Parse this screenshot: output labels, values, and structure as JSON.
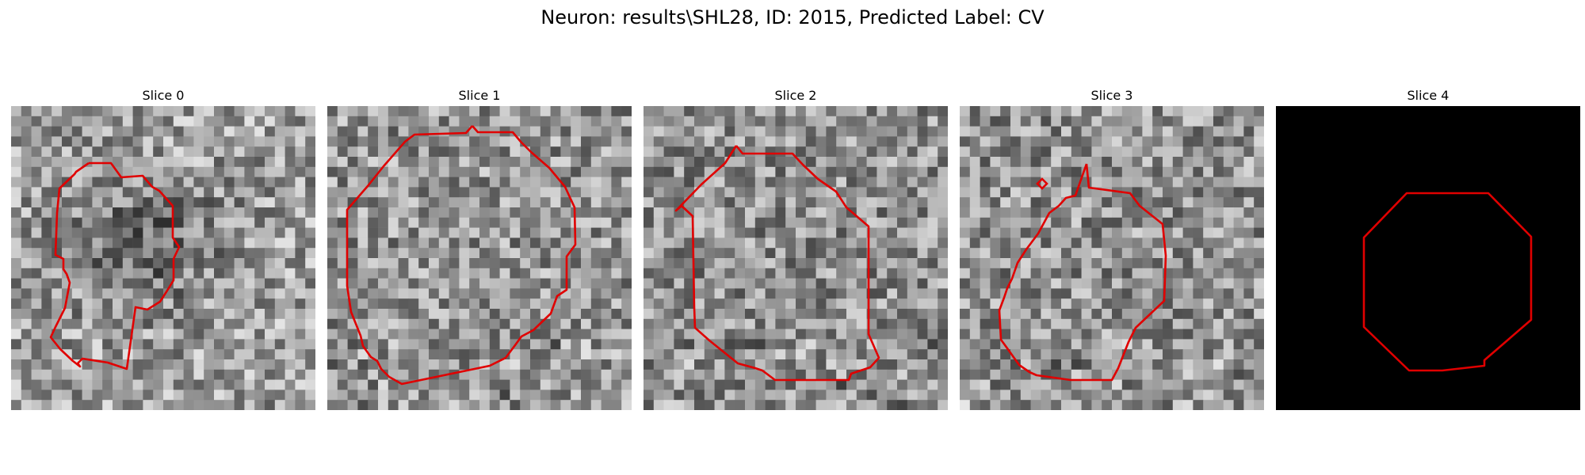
{
  "figure": {
    "title": "Neuron: results\\SHL28, ID: 2015, Predicted Label: CV"
  },
  "colors": {
    "background": "#ffffff",
    "contour": "#e00000",
    "blank_panel": "#000000"
  },
  "panels": [
    {
      "title": "Slice 0",
      "image": "noisy-grayscale-patch",
      "overlay": "red-roi-contour",
      "brightness": 0.62,
      "center_dark": true
    },
    {
      "title": "Slice 1",
      "image": "noisy-grayscale-patch",
      "overlay": "red-roi-contour",
      "brightness": 0.58,
      "center_dark": false
    },
    {
      "title": "Slice 2",
      "image": "noisy-grayscale-patch",
      "overlay": "red-roi-contour",
      "brightness": 0.56,
      "center_dark": false
    },
    {
      "title": "Slice 3",
      "image": "noisy-grayscale-patch",
      "overlay": "red-roi-contour",
      "brightness": 0.57,
      "center_dark": false
    },
    {
      "title": "Slice 4",
      "image": "black-patch",
      "overlay": "red-roi-contour",
      "brightness": 0.0,
      "center_dark": false
    }
  ]
}
